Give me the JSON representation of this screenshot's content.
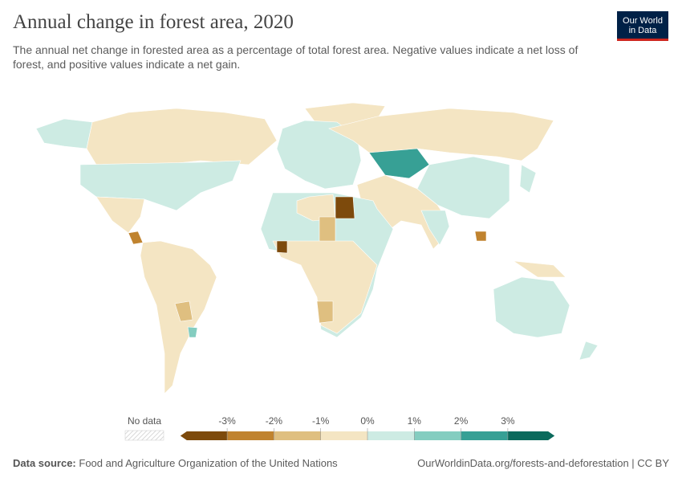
{
  "header": {
    "title": "Annual change in forest area, 2020",
    "subtitle": "The annual net change in forested area as a percentage of total forest area. Negative values indicate a net loss of forest, and positive values indicate a net gain.",
    "logo": [
      "Our World",
      "in Data"
    ]
  },
  "legend": {
    "no_data": "No data",
    "ticks": [
      {
        "value": -3,
        "label": "-3%"
      },
      {
        "value": -2,
        "label": "-2%"
      },
      {
        "value": -1,
        "label": "-1%"
      },
      {
        "value": 0,
        "label": "0%"
      },
      {
        "value": 1,
        "label": "1%"
      },
      {
        "value": 2,
        "label": "2%"
      },
      {
        "value": 3,
        "label": "3%"
      }
    ],
    "colors": [
      "#7d4a0c",
      "#c0832f",
      "#dfbf80",
      "#f4e5c3",
      "#cdebe3",
      "#84cdc0",
      "#37a095",
      "#0b6a5c"
    ]
  },
  "footer": {
    "source_label": "Data source:",
    "source": "Food and Agriculture Organization of the United Nations",
    "url": "OurWorldinData.org/forests-and-deforestation | CC BY"
  }
}
